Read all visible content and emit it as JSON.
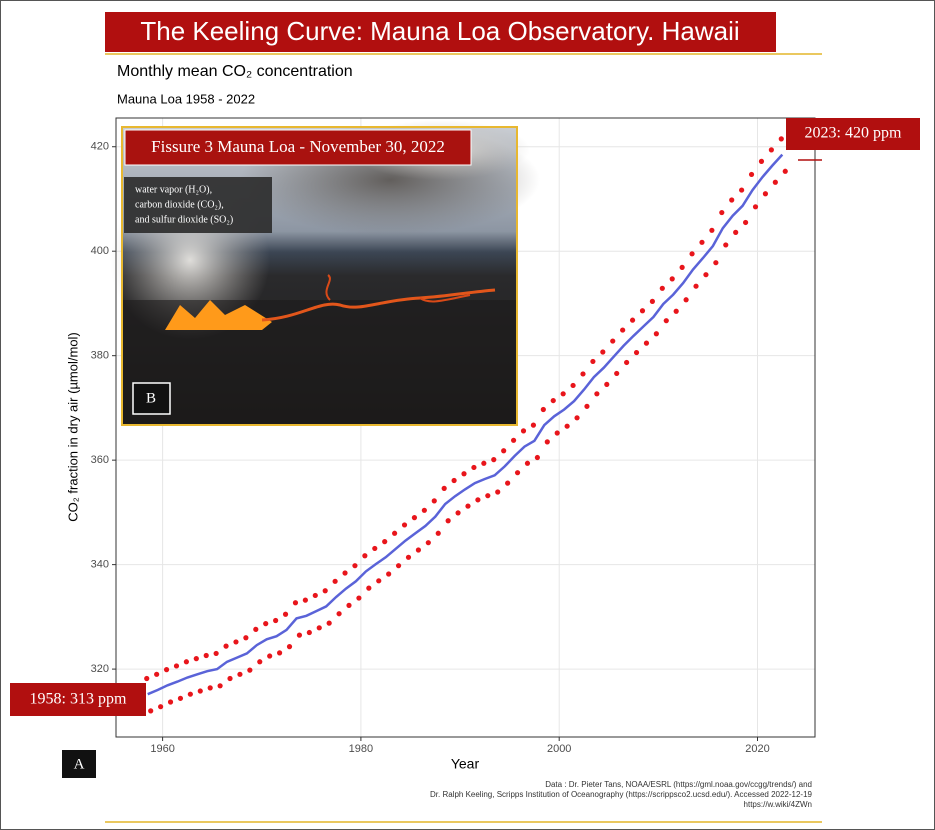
{
  "banner": "The Keeling Curve: Mauna Loa Observatory. Hawaii",
  "chart_data": {
    "type": "scatter",
    "title": "Monthly mean CO₂ concentration",
    "subtitle": "Mauna Loa 1958 - 2022",
    "x_label": "Year",
    "y_label": "CO₂ fraction in dry air (µmol/mol)",
    "xlim": [
      1955.3,
      2025.8
    ],
    "ylim": [
      307,
      425.5
    ],
    "xticks": [
      1960,
      1980,
      2000,
      2020
    ],
    "yticks": [
      320,
      340,
      360,
      380,
      400,
      420
    ],
    "grid": true,
    "series": [
      {
        "color": "#e8151b",
        "x": [
          1958.4,
          1958.8,
          1959.4,
          1959.8,
          1960.4,
          1960.8,
          1961.4,
          1961.8,
          1962.4,
          1962.8,
          1963.4,
          1963.8,
          1964.4,
          1964.8,
          1965.4,
          1965.8,
          1966.4,
          1966.8,
          1967.4,
          1967.8,
          1968.4,
          1968.8,
          1969.4,
          1969.8,
          1970.4,
          1970.8,
          1971.4,
          1971.8,
          1972.4,
          1972.8,
          1973.4,
          1973.8,
          1974.4,
          1974.8,
          1975.4,
          1975.8,
          1976.4,
          1976.8,
          1977.4,
          1977.8,
          1978.4,
          1978.8,
          1979.4,
          1979.8,
          1980.4,
          1980.8,
          1981.4,
          1981.8,
          1982.4,
          1982.8,
          1983.4,
          1983.8,
          1984.4,
          1984.8,
          1985.4,
          1985.8,
          1986.4,
          1986.8,
          1987.4,
          1987.8,
          1988.4,
          1988.8,
          1989.4,
          1989.8,
          1990.4,
          1990.8,
          1991.4,
          1991.8,
          1992.4,
          1992.8,
          1993.4,
          1993.8,
          1994.4,
          1994.8,
          1995.4,
          1995.8,
          1996.4,
          1996.8,
          1997.4,
          1997.8,
          1998.4,
          1998.8,
          1999.4,
          1999.8,
          2000.4,
          2000.8,
          2001.4,
          2001.8,
          2002.4,
          2002.8,
          2003.4,
          2003.8,
          2004.4,
          2004.8,
          2005.4,
          2005.8,
          2006.4,
          2006.8,
          2007.4,
          2007.8,
          2008.4,
          2008.8,
          2009.4,
          2009.8,
          2010.4,
          2010.8,
          2011.4,
          2011.8,
          2012.4,
          2012.8,
          2013.4,
          2013.8,
          2014.4,
          2014.8,
          2015.4,
          2015.8,
          2016.4,
          2016.8,
          2017.4,
          2017.8,
          2018.4,
          2018.8,
          2019.4,
          2019.8,
          2020.4,
          2020.8,
          2021.4,
          2021.8,
          2022.4,
          2022.8
        ],
        "values": [
          318.2,
          312.0,
          319.0,
          312.8,
          319.9,
          313.7,
          320.6,
          314.4,
          321.4,
          315.2,
          322.0,
          315.8,
          322.6,
          316.4,
          323.0,
          316.8,
          324.4,
          318.2,
          325.2,
          319.0,
          326.0,
          319.8,
          327.6,
          321.4,
          328.7,
          322.5,
          329.3,
          323.1,
          330.5,
          324.3,
          332.7,
          326.5,
          333.2,
          327.0,
          334.1,
          327.9,
          335.0,
          328.8,
          336.8,
          330.6,
          338.4,
          332.2,
          339.8,
          333.6,
          341.7,
          335.5,
          343.1,
          336.9,
          344.4,
          338.2,
          346.0,
          339.8,
          347.6,
          341.4,
          349.0,
          342.8,
          350.4,
          344.2,
          352.2,
          346.0,
          354.6,
          348.4,
          356.1,
          349.9,
          357.4,
          351.2,
          358.6,
          352.4,
          359.4,
          353.2,
          360.1,
          353.9,
          361.8,
          355.6,
          363.8,
          357.6,
          365.6,
          359.4,
          366.7,
          360.5,
          369.7,
          363.5,
          371.4,
          365.2,
          372.7,
          366.5,
          374.3,
          368.1,
          376.5,
          370.3,
          378.9,
          372.7,
          380.7,
          374.5,
          382.8,
          376.6,
          384.9,
          378.7,
          386.8,
          380.6,
          388.6,
          382.4,
          390.4,
          384.2,
          392.9,
          386.7,
          394.7,
          388.5,
          396.9,
          390.7,
          399.5,
          393.3,
          401.7,
          395.5,
          404.0,
          397.8,
          407.4,
          401.2,
          409.8,
          403.6,
          411.7,
          405.5,
          414.7,
          408.5,
          417.2,
          411.0,
          419.4,
          413.2,
          421.5,
          415.3
        ]
      }
    ],
    "trend": {
      "color": "#5a63d8",
      "x": [
        1958.5,
        1959.5,
        1960.5,
        1961.5,
        1962.5,
        1963.5,
        1964.5,
        1965.5,
        1966.5,
        1967.5,
        1968.5,
        1969.5,
        1970.5,
        1971.5,
        1972.5,
        1973.5,
        1974.5,
        1975.5,
        1976.5,
        1977.5,
        1978.5,
        1979.5,
        1980.5,
        1981.5,
        1982.5,
        1983.5,
        1984.5,
        1985.5,
        1986.5,
        1987.5,
        1988.5,
        1989.5,
        1990.5,
        1991.5,
        1992.5,
        1993.5,
        1994.5,
        1995.5,
        1996.5,
        1997.5,
        1998.5,
        1999.5,
        2000.5,
        2001.5,
        2002.5,
        2003.5,
        2004.5,
        2005.5,
        2006.5,
        2007.5,
        2008.5,
        2009.5,
        2010.5,
        2011.5,
        2012.5,
        2013.5,
        2014.5,
        2015.5,
        2016.5,
        2017.5,
        2018.5,
        2019.5,
        2020.5,
        2021.5,
        2022.5
      ],
      "values": [
        315.2,
        316.0,
        316.9,
        317.6,
        318.4,
        319.0,
        319.6,
        320.0,
        321.4,
        322.2,
        323.0,
        324.6,
        325.7,
        326.3,
        327.5,
        329.7,
        330.2,
        331.1,
        332.0,
        333.8,
        335.4,
        336.8,
        338.7,
        340.1,
        341.4,
        343.0,
        344.6,
        346.0,
        347.4,
        349.2,
        351.6,
        353.1,
        354.4,
        355.6,
        356.4,
        357.1,
        358.8,
        360.8,
        362.6,
        363.7,
        366.7,
        368.4,
        369.7,
        371.3,
        373.5,
        375.9,
        377.7,
        379.8,
        381.9,
        383.8,
        385.6,
        387.4,
        389.9,
        391.7,
        393.9,
        396.5,
        398.7,
        401.0,
        404.4,
        406.8,
        408.7,
        411.7,
        414.2,
        416.4,
        418.5
      ]
    }
  },
  "inset": {
    "title": "Fissure 3 Mauna Loa - November 30, 2022",
    "caption": [
      "water vapor (H₂O),",
      "carbon dioxide (CO₂),",
      "and sulfur dioxide (SO₂)"
    ],
    "tag": "B"
  },
  "callouts": [
    "2023: 420 ppm",
    "1958: 313 ppm"
  ],
  "panel_tag": "A",
  "source": [
    "Data : Dr. Pieter Tans, NOAA/ESRL (https://gml.noaa.gov/ccgg/trends/) and",
    "Dr. Ralph Keeling, Scripps Institution of Oceanography (https://scrippsco2.ucsd.edu/). Accessed  2022-12-19",
    "https://w.wiki/4ZWn"
  ]
}
